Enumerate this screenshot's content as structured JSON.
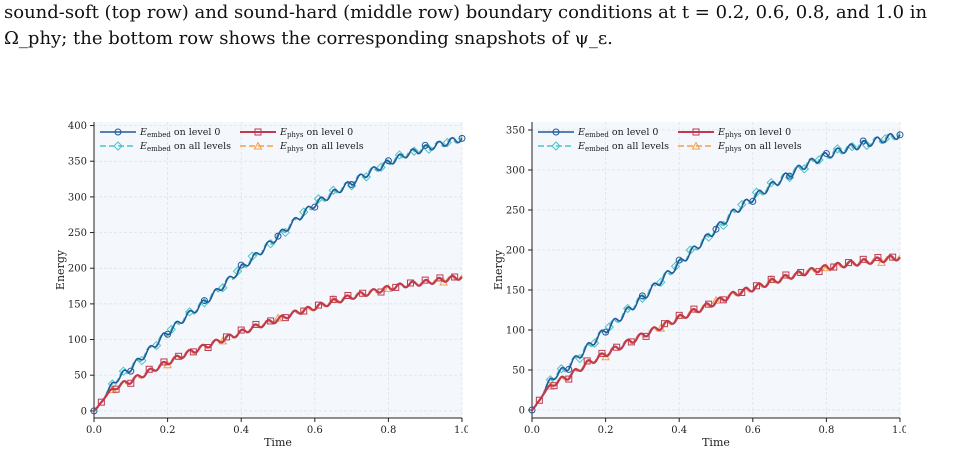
{
  "caption": {
    "line1": "sound-soft (top row) and sound-hard (middle row) boundary conditions at t = 0.2, 0.6, 0.8, and 1.0 in",
    "line2": "Ω_phy; the bottom row shows the corresponding snapshots of ψ_ε."
  },
  "colors": {
    "embed_level0": "#1f5a99",
    "embed_all": "#4fc3c3",
    "phys_level0": "#c03a4f",
    "phys_all": "#f2a04a",
    "plot_bg": "#f4f7fc",
    "grid": "#dcdfe6"
  },
  "chart_data": [
    {
      "type": "line",
      "xlabel": "Time",
      "ylabel": "Energy",
      "xlim": [
        0,
        1.0
      ],
      "ylim": [
        -10,
        405
      ],
      "xticks": [
        "0.0",
        "0.2",
        "0.4",
        "0.6",
        "0.8",
        "1.0"
      ],
      "yticks": [
        "0",
        "50",
        "100",
        "150",
        "200",
        "250",
        "300",
        "350",
        "400"
      ],
      "grid": true,
      "legend_position": "top-left",
      "series": [
        {
          "name": "E_embed on level 0",
          "curve": "embed",
          "marker": "circle",
          "marker_x": [
            0,
            0.1,
            0.2,
            0.3,
            0.4,
            0.5,
            0.6,
            0.7,
            0.8,
            0.9,
            1.0
          ]
        },
        {
          "name": "E_embed on all levels",
          "curve": "embed",
          "marker": "diamond",
          "marker_x": [
            0.05,
            0.08,
            0.13,
            0.17,
            0.21,
            0.26,
            0.3,
            0.35,
            0.39,
            0.43,
            0.48,
            0.52,
            0.57,
            0.61,
            0.65,
            0.7,
            0.74,
            0.78,
            0.83,
            0.87,
            0.91,
            0.96
          ]
        },
        {
          "name": "E_phys on level 0",
          "curve": "phys",
          "marker": "square",
          "marker_x": [
            0.02,
            0.06,
            0.1,
            0.15,
            0.19,
            0.23,
            0.27,
            0.31,
            0.36,
            0.4,
            0.44,
            0.48,
            0.52,
            0.57,
            0.61,
            0.65,
            0.69,
            0.73,
            0.78,
            0.82,
            0.86,
            0.9,
            0.94,
            0.98
          ]
        },
        {
          "name": "E_phys on all levels",
          "curve": "phys",
          "marker": "triangle",
          "marker_x": [
            0.05,
            0.2,
            0.35,
            0.5,
            0.65,
            0.8,
            0.95
          ]
        }
      ],
      "curves": {
        "embed": {
          "x": [
            0,
            0.01,
            0.03,
            0.05,
            0.08,
            0.1,
            0.15,
            0.2,
            0.25,
            0.3,
            0.35,
            0.4,
            0.45,
            0.5,
            0.55,
            0.6,
            0.65,
            0.7,
            0.75,
            0.8,
            0.85,
            0.9,
            0.95,
            1.0
          ],
          "y": [
            0,
            5,
            20,
            38,
            52,
            60,
            85,
            110,
            132,
            152,
            175,
            200,
            222,
            245,
            268,
            290,
            305,
            320,
            335,
            348,
            360,
            368,
            375,
            382
          ]
        },
        "phys": {
          "x": [
            0,
            0.01,
            0.03,
            0.05,
            0.08,
            0.1,
            0.15,
            0.2,
            0.25,
            0.3,
            0.35,
            0.4,
            0.45,
            0.5,
            0.55,
            0.6,
            0.65,
            0.7,
            0.75,
            0.8,
            0.85,
            0.9,
            0.95,
            1.0
          ],
          "y": [
            0,
            5,
            20,
            30,
            38,
            42,
            55,
            68,
            80,
            90,
            100,
            110,
            120,
            128,
            138,
            145,
            153,
            160,
            166,
            172,
            177,
            180,
            184,
            188
          ]
        }
      }
    },
    {
      "type": "line",
      "xlabel": "Time",
      "ylabel": "Energy",
      "xlim": [
        0,
        1.0
      ],
      "ylim": [
        -10,
        360
      ],
      "xticks": [
        "0.0",
        "0.2",
        "0.4",
        "0.6",
        "0.8",
        "1.0"
      ],
      "yticks": [
        "0",
        "50",
        "100",
        "150",
        "200",
        "250",
        "300",
        "350"
      ],
      "grid": true,
      "legend_position": "top-left",
      "series": [
        {
          "name": "E_embed on level 0",
          "curve": "embed",
          "marker": "circle",
          "marker_x": [
            0,
            0.1,
            0.2,
            0.3,
            0.4,
            0.5,
            0.6,
            0.7,
            0.8,
            0.9,
            1.0
          ]
        },
        {
          "name": "E_embed on all levels",
          "curve": "embed",
          "marker": "diamond",
          "marker_x": [
            0.05,
            0.08,
            0.13,
            0.17,
            0.21,
            0.26,
            0.3,
            0.35,
            0.39,
            0.43,
            0.48,
            0.52,
            0.57,
            0.61,
            0.65,
            0.7,
            0.74,
            0.78,
            0.83,
            0.87,
            0.91,
            0.96
          ]
        },
        {
          "name": "E_phys on level 0",
          "curve": "phys",
          "marker": "square",
          "marker_x": [
            0.02,
            0.06,
            0.1,
            0.15,
            0.19,
            0.23,
            0.27,
            0.31,
            0.36,
            0.4,
            0.44,
            0.48,
            0.52,
            0.57,
            0.61,
            0.65,
            0.69,
            0.73,
            0.78,
            0.82,
            0.86,
            0.9,
            0.94,
            0.98
          ]
        },
        {
          "name": "E_phys on all levels",
          "curve": "phys",
          "marker": "triangle",
          "marker_x": [
            0.05,
            0.2,
            0.35,
            0.5,
            0.65,
            0.8,
            0.95
          ]
        }
      ],
      "curves": {
        "embed": {
          "x": [
            0,
            0.01,
            0.03,
            0.05,
            0.08,
            0.1,
            0.15,
            0.2,
            0.25,
            0.3,
            0.35,
            0.4,
            0.45,
            0.5,
            0.55,
            0.6,
            0.65,
            0.7,
            0.75,
            0.8,
            0.85,
            0.9,
            0.95,
            1.0
          ],
          "y": [
            0,
            5,
            20,
            38,
            48,
            55,
            78,
            100,
            120,
            140,
            162,
            183,
            205,
            226,
            248,
            265,
            280,
            295,
            308,
            318,
            326,
            332,
            338,
            344
          ]
        },
        "phys": {
          "x": [
            0,
            0.01,
            0.03,
            0.05,
            0.08,
            0.1,
            0.15,
            0.2,
            0.25,
            0.3,
            0.35,
            0.4,
            0.45,
            0.5,
            0.55,
            0.6,
            0.65,
            0.7,
            0.75,
            0.8,
            0.85,
            0.9,
            0.95,
            1.0
          ],
          "y": [
            0,
            5,
            20,
            30,
            38,
            42,
            58,
            70,
            82,
            93,
            104,
            115,
            125,
            135,
            145,
            152,
            160,
            167,
            173,
            178,
            182,
            185,
            188,
            191
          ]
        }
      }
    }
  ]
}
